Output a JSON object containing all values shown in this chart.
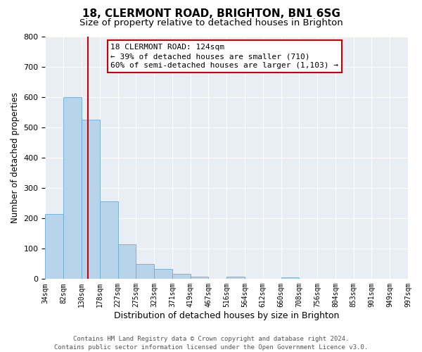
{
  "title1": "18, CLERMONT ROAD, BRIGHTON, BN1 6SG",
  "title2": "Size of property relative to detached houses in Brighton",
  "xlabel": "Distribution of detached houses by size in Brighton",
  "ylabel": "Number of detached properties",
  "bin_labels": [
    "34sqm",
    "82sqm",
    "130sqm",
    "178sqm",
    "227sqm",
    "275sqm",
    "323sqm",
    "371sqm",
    "419sqm",
    "467sqm",
    "516sqm",
    "564sqm",
    "612sqm",
    "660sqm",
    "708sqm",
    "756sqm",
    "804sqm",
    "853sqm",
    "901sqm",
    "949sqm",
    "997sqm"
  ],
  "counts": [
    215,
    600,
    525,
    255,
    115,
    50,
    33,
    18,
    8,
    0,
    8,
    0,
    0,
    5,
    0,
    0,
    0,
    0,
    0,
    0
  ],
  "bar_color": "#b8d4ea",
  "bar_edge_color": "#6aaed6",
  "vline_after_bar": 1,
  "vline_color": "#cc0000",
  "ylim": [
    0,
    800
  ],
  "yticks": [
    0,
    100,
    200,
    300,
    400,
    500,
    600,
    700,
    800
  ],
  "annotation_box_text": "18 CLERMONT ROAD: 124sqm\n← 39% of detached houses are smaller (710)\n60% of semi-detached houses are larger (1,103) →",
  "box_edge_color": "#cc0000",
  "footer1": "Contains HM Land Registry data © Crown copyright and database right 2024.",
  "footer2": "Contains public sector information licensed under the Open Government Licence v3.0.",
  "background_color": "#e8eef4",
  "grid_color": "#ffffff",
  "title1_fontsize": 11,
  "title2_fontsize": 9.5,
  "xlabel_fontsize": 9,
  "ylabel_fontsize": 8.5,
  "tick_fontsize": 7,
  "footer_fontsize": 6.5,
  "annot_fontsize": 8
}
